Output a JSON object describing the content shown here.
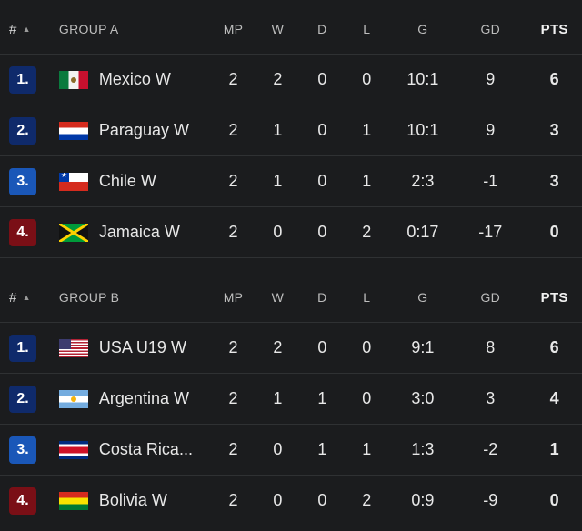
{
  "colors": {
    "background": "#1b1c1e",
    "divider": "#2f3133",
    "rank_1": "#0f2a6b",
    "rank_2": "#0f2a6b",
    "rank_3": "#1a57b8",
    "rank_4": "#7a0f16"
  },
  "groups": [
    {
      "header": {
        "rank": "#",
        "sort_icon": "sort-ascending-icon",
        "group": "GROUP A",
        "mp": "MP",
        "w": "W",
        "d": "D",
        "l": "L",
        "g": "G",
        "gd": "GD",
        "pts": "PTS"
      },
      "rows": [
        {
          "rank": "1.",
          "flag": "mexico-flag-icon",
          "team": "Mexico W",
          "mp": "2",
          "w": "2",
          "d": "0",
          "l": "0",
          "g": "10:1",
          "gd": "9",
          "pts": "6"
        },
        {
          "rank": "2.",
          "flag": "paraguay-flag-icon",
          "team": "Paraguay W",
          "mp": "2",
          "w": "1",
          "d": "0",
          "l": "1",
          "g": "10:1",
          "gd": "9",
          "pts": "3"
        },
        {
          "rank": "3.",
          "flag": "chile-flag-icon",
          "team": "Chile W",
          "mp": "2",
          "w": "1",
          "d": "0",
          "l": "1",
          "g": "2:3",
          "gd": "-1",
          "pts": "3"
        },
        {
          "rank": "4.",
          "flag": "jamaica-flag-icon",
          "team": "Jamaica W",
          "mp": "2",
          "w": "0",
          "d": "0",
          "l": "2",
          "g": "0:17",
          "gd": "-17",
          "pts": "0"
        }
      ]
    },
    {
      "header": {
        "rank": "#",
        "sort_icon": "sort-ascending-icon",
        "group": "GROUP B",
        "mp": "MP",
        "w": "W",
        "d": "D",
        "l": "L",
        "g": "G",
        "gd": "GD",
        "pts": "PTS"
      },
      "rows": [
        {
          "rank": "1.",
          "flag": "usa-flag-icon",
          "team": "USA U19 W",
          "mp": "2",
          "w": "2",
          "d": "0",
          "l": "0",
          "g": "9:1",
          "gd": "8",
          "pts": "6"
        },
        {
          "rank": "2.",
          "flag": "argentina-flag-icon",
          "team": "Argentina W",
          "mp": "2",
          "w": "1",
          "d": "1",
          "l": "0",
          "g": "3:0",
          "gd": "3",
          "pts": "4"
        },
        {
          "rank": "3.",
          "flag": "costa-rica-flag-icon",
          "team": "Costa Rica...",
          "mp": "2",
          "w": "0",
          "d": "1",
          "l": "1",
          "g": "1:3",
          "gd": "-2",
          "pts": "1"
        },
        {
          "rank": "4.",
          "flag": "bolivia-flag-icon",
          "team": "Bolivia W",
          "mp": "2",
          "w": "0",
          "d": "0",
          "l": "2",
          "g": "0:9",
          "gd": "-9",
          "pts": "0"
        }
      ]
    }
  ]
}
